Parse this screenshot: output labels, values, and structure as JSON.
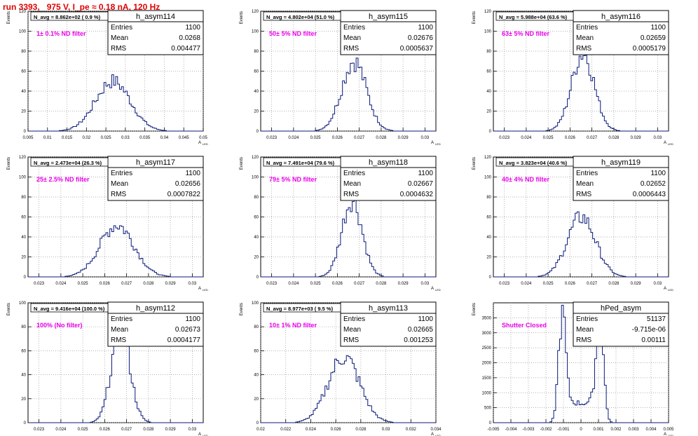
{
  "page_title": "run 3393,   975 V, I_pe ≈ 0.18 nA, 120 Hz",
  "stat_labels": {
    "entries": "Entries",
    "mean": "Mean",
    "rms": "RMS"
  },
  "y_axis_label": "Events",
  "x_axis_label": "A",
  "x_axis_label_sub": "LED",
  "chart_data": [
    {
      "name": "h_asym114",
      "type": "histogram",
      "entries": "1100",
      "mean": "0.0268",
      "rms": "0.004477",
      "n_avg": "N_avg = 8.862e+02 ( 0.9 %)",
      "filter": "1± 0.1% ND filter",
      "xlim": [
        0.005,
        0.05
      ],
      "ylim": [
        0,
        120
      ],
      "x_ticks": [
        "0.005",
        "0.01",
        "0.015",
        "0.02",
        "0.025",
        "0.03",
        "0.035",
        "0.04",
        "0.045",
        "0.05"
      ],
      "x_tick_values": [
        0.005,
        0.01,
        0.015,
        0.02,
        0.025,
        0.03,
        0.035,
        0.04,
        0.045,
        0.05
      ],
      "y_ticks": [
        0,
        20,
        40,
        60,
        80,
        100,
        120
      ],
      "peak_height": 50,
      "centers": [
        0.0268
      ]
    },
    {
      "name": "h_asym115",
      "type": "histogram",
      "entries": "1100",
      "mean": "0.02676",
      "rms": "0.0005637",
      "n_avg": "N_avg = 4.802e+04 (51.0 %)",
      "filter": "50± 5% ND filter",
      "xlim": [
        0.0225,
        0.0305
      ],
      "ylim": [
        0,
        120
      ],
      "x_ticks": [
        "0.023",
        "0.024",
        "0.025",
        "0.026",
        "0.027",
        "0.028",
        "0.029",
        "0.03"
      ],
      "x_tick_values": [
        0.023,
        0.024,
        0.025,
        0.026,
        0.027,
        0.028,
        0.029,
        0.03
      ],
      "y_ticks": [
        0,
        20,
        40,
        60,
        80,
        100,
        120
      ],
      "peak_height": 70,
      "centers": [
        0.02676
      ]
    },
    {
      "name": "h_asym116",
      "type": "histogram",
      "entries": "1100",
      "mean": "0.02659",
      "rms": "0.0005179",
      "n_avg": "N_avg = 5.988e+04 (63.6 %)",
      "filter": "63± 5% ND filter",
      "xlim": [
        0.0225,
        0.0305
      ],
      "ylim": [
        0,
        120
      ],
      "x_ticks": [
        "0.023",
        "0.024",
        "0.025",
        "0.026",
        "0.027",
        "0.028",
        "0.029",
        "0.03"
      ],
      "x_tick_values": [
        0.023,
        0.024,
        0.025,
        0.026,
        0.027,
        0.028,
        0.029,
        0.03
      ],
      "y_ticks": [
        0,
        20,
        40,
        60,
        80,
        100,
        120
      ],
      "peak_height": 78,
      "centers": [
        0.02659
      ]
    },
    {
      "name": "h_asym117",
      "type": "histogram",
      "entries": "1100",
      "mean": "0.02656",
      "rms": "0.0007822",
      "n_avg": "N_avg = 2.473e+04 (26.3 %)",
      "filter": "25± 2.5% ND filter",
      "xlim": [
        0.0225,
        0.0305
      ],
      "ylim": [
        0,
        120
      ],
      "x_ticks": [
        "0.023",
        "0.024",
        "0.025",
        "0.026",
        "0.027",
        "0.028",
        "0.029",
        "0.03"
      ],
      "x_tick_values": [
        0.023,
        0.024,
        0.025,
        0.026,
        0.027,
        0.028,
        0.029,
        0.03
      ],
      "y_ticks": [
        0,
        20,
        40,
        60,
        80,
        100,
        120
      ],
      "peak_height": 52,
      "centers": [
        0.02656
      ]
    },
    {
      "name": "h_asym118",
      "type": "histogram",
      "entries": "1100",
      "mean": "0.02667",
      "rms": "0.0004632",
      "n_avg": "N_avg = 7.491e+04 (79.6 %)",
      "filter": "79± 5% ND filter",
      "xlim": [
        0.0225,
        0.0305
      ],
      "ylim": [
        0,
        120
      ],
      "x_ticks": [
        "0.023",
        "0.024",
        "0.025",
        "0.026",
        "0.027",
        "0.028",
        "0.029",
        "0.03"
      ],
      "x_tick_values": [
        0.023,
        0.024,
        0.025,
        0.026,
        0.027,
        0.028,
        0.029,
        0.03
      ],
      "y_ticks": [
        0,
        20,
        40,
        60,
        80,
        100,
        120
      ],
      "peak_height": 77,
      "centers": [
        0.02667
      ]
    },
    {
      "name": "h_asym119",
      "type": "histogram",
      "entries": "1100",
      "mean": "0.02652",
      "rms": "0.0006443",
      "n_avg": "N_avg = 3.823e+04 (40.6 %)",
      "filter": "40± 4% ND filter",
      "xlim": [
        0.0225,
        0.0305
      ],
      "ylim": [
        0,
        120
      ],
      "x_ticks": [
        "0.023",
        "0.024",
        "0.025",
        "0.026",
        "0.027",
        "0.028",
        "0.029",
        "0.03"
      ],
      "x_tick_values": [
        0.023,
        0.024,
        0.025,
        0.026,
        0.027,
        0.028,
        0.029,
        0.03
      ],
      "y_ticks": [
        0,
        20,
        40,
        60,
        80,
        100,
        120
      ],
      "peak_height": 60,
      "centers": [
        0.02652
      ]
    },
    {
      "name": "h_asym112",
      "type": "histogram",
      "entries": "1100",
      "mean": "0.02673",
      "rms": "0.0004177",
      "n_avg": "N_avg = 9.416e+04 (100.0 %)",
      "filter": "100% (No filter)",
      "xlim": [
        0.0225,
        0.0305
      ],
      "ylim": [
        0,
        100
      ],
      "x_ticks": [
        "0.023",
        "0.024",
        "0.025",
        "0.026",
        "0.027",
        "0.028",
        "0.029",
        "0.03"
      ],
      "x_tick_values": [
        0.023,
        0.024,
        0.025,
        0.026,
        0.027,
        0.028,
        0.029,
        0.03
      ],
      "y_ticks": [
        0,
        20,
        40,
        60,
        80,
        100
      ],
      "peak_height": 80,
      "centers": [
        0.02673
      ]
    },
    {
      "name": "h_asym113",
      "type": "histogram",
      "entries": "1100",
      "mean": "0.02665",
      "rms": "0.001253",
      "n_avg": "N_avg = 8.977e+03 ( 9.5 %)",
      "filter": "10± 1% ND filter",
      "xlim": [
        0.02,
        0.034
      ],
      "ylim": [
        0,
        100
      ],
      "x_ticks": [
        "0.02",
        "0.022",
        "0.024",
        "0.026",
        "0.028",
        "0.03",
        "0.032",
        "0.034"
      ],
      "x_tick_values": [
        0.02,
        0.022,
        0.024,
        0.026,
        0.028,
        0.03,
        0.032,
        0.034
      ],
      "y_ticks": [
        0,
        20,
        40,
        60,
        80,
        100
      ],
      "peak_height": 55,
      "centers": [
        0.02665
      ]
    },
    {
      "name": "hPed_asym",
      "type": "histogram",
      "entries": "51137",
      "mean": "-9.715e-06",
      "rms": "0.00111",
      "n_avg": "",
      "filter": "Shutter Closed",
      "xlim": [
        -0.005,
        0.005
      ],
      "ylim": [
        0,
        4000
      ],
      "x_ticks": [
        "-0.005",
        "-0.004",
        "-0.003",
        "-0.002",
        "-0.001",
        "0",
        "0.001",
        "0.002",
        "0.003",
        "0.004",
        "0.005"
      ],
      "x_tick_values": [
        -0.005,
        -0.004,
        -0.003,
        -0.002,
        -0.001,
        0,
        0.001,
        0.002,
        0.003,
        0.004,
        0.005
      ],
      "y_ticks": [
        0,
        500,
        1000,
        1500,
        2000,
        2500,
        3000,
        3500
      ],
      "peak_height": 3400,
      "centers": [
        -0.0011,
        0.0011
      ]
    }
  ]
}
